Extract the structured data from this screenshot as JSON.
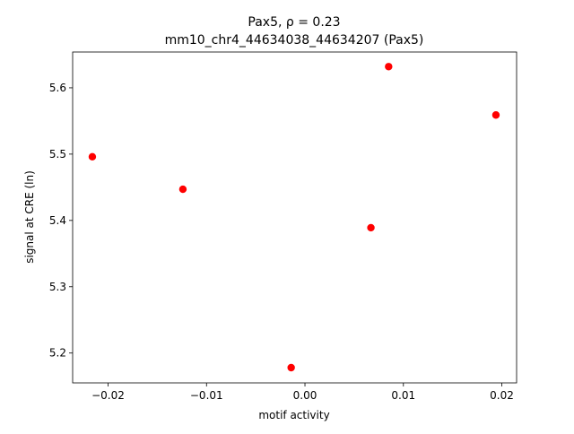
{
  "chart_data": {
    "type": "scatter",
    "title": "Pax5, ρ = 0.23",
    "subtitle": "mm10_chr4_44634038_44634207 (Pax5)",
    "x_label": "motif activity",
    "y_label": "signal at CRE (ln)",
    "color": "#ff0000",
    "x": [
      -0.0216,
      -0.0124,
      -0.0014,
      0.0067,
      0.0085,
      0.0194
    ],
    "values": [
      5.496,
      5.447,
      5.178,
      5.389,
      5.632,
      5.559
    ],
    "xlim": [
      -0.0236,
      0.0215
    ],
    "ylim": [
      5.155,
      5.654
    ],
    "xticks": [
      {
        "value": -0.02,
        "label": "−0.02"
      },
      {
        "value": -0.01,
        "label": "−0.01"
      },
      {
        "value": 0,
        "label": "0.00"
      },
      0.01,
      0.02
    ],
    "yticks": [
      5.2,
      5.3,
      5.4,
      5.5,
      5.6
    ],
    "grid": false
  }
}
